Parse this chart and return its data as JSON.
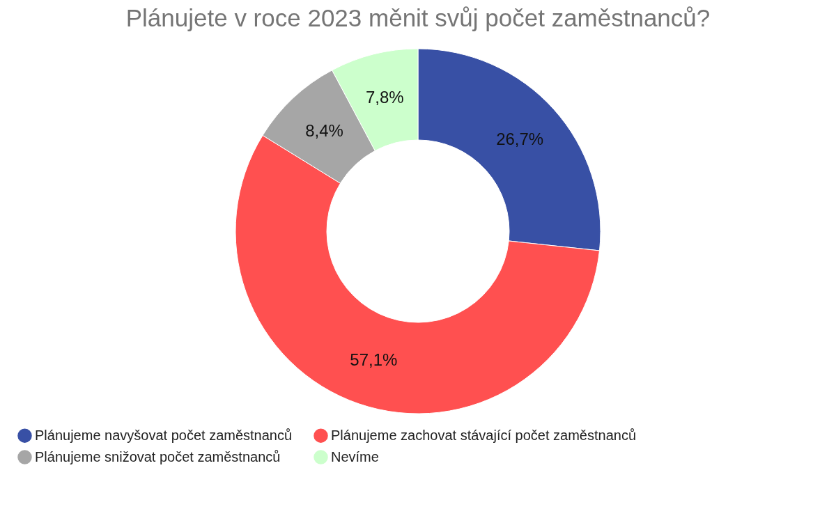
{
  "chart_data": {
    "type": "donut",
    "title": "Plánujete v roce 2023 měnit svůj počet zaměstnanců?",
    "categories": [
      "Plánujeme navyšovat počet zaměstnanců",
      "Plánujeme zachovat stávající počet zaměstnanců",
      "Plánujeme snižovat počet zaměstnanců",
      "Nevíme"
    ],
    "values": [
      26.7,
      57.1,
      8.4,
      7.8
    ],
    "colors": [
      "#3850a5",
      "#ff5050",
      "#a6a6a6",
      "#ccffcc"
    ],
    "value_labels": [
      "26,7%",
      "57,1%",
      "8,4%",
      "7,8%"
    ],
    "legend": "bottom"
  }
}
